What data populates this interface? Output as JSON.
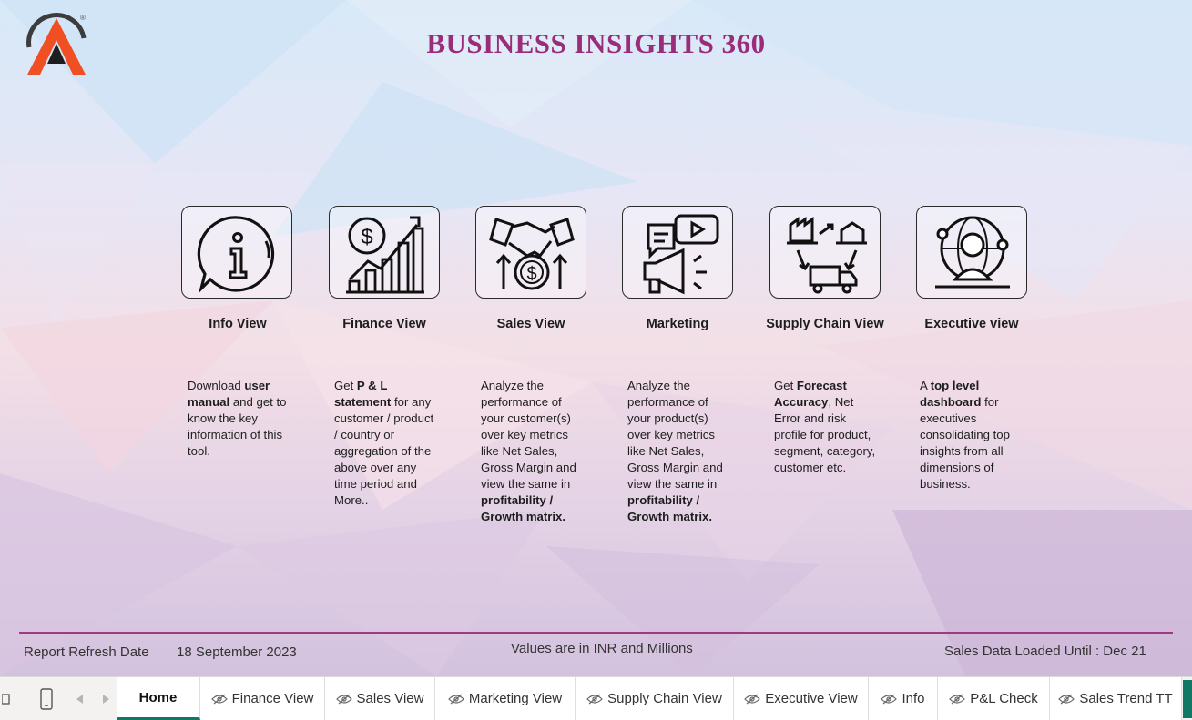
{
  "header": {
    "title": "BUSINESS INSIGHTS 360",
    "logo_mark": "®"
  },
  "colors": {
    "title": "#9b2c79",
    "accent_line": "#a03a7e",
    "active_tab": "#117865",
    "logo_orange": "#f04e23"
  },
  "cards": [
    {
      "label": "Info View",
      "icon": "info-chat-icon"
    },
    {
      "label": "Finance View",
      "icon": "finance-growth-icon"
    },
    {
      "label": "Sales View",
      "icon": "handshake-dollar-icon"
    },
    {
      "label": "Marketing",
      "icon": "megaphone-video-icon"
    },
    {
      "label": "Supply Chain View",
      "icon": "supply-chain-icon"
    },
    {
      "label": "Executive view",
      "icon": "executive-globe-icon"
    }
  ],
  "descriptions": [
    [
      {
        "t": "Download ",
        "b": false
      },
      {
        "t": "user manual",
        "b": true
      },
      {
        "t": " and get to know the key information of this tool.",
        "b": false
      }
    ],
    [
      {
        "t": "Get  ",
        "b": false
      },
      {
        "t": "P & L statement",
        "b": true
      },
      {
        "t": " for any customer / product / country or aggregation of the above over any time period and More..",
        "b": false
      }
    ],
    [
      {
        "t": "Analyze the performance of your customer(s) over key metrics like Net Sales, Gross Margin and view the same in ",
        "b": false
      },
      {
        "t": "profitability / Growth matrix.",
        "b": true
      }
    ],
    [
      {
        "t": "Analyze the performance of your product(s) over key metrics like Net Sales, Gross Margin and view the same in ",
        "b": false
      },
      {
        "t": "profitability / Growth matrix.",
        "b": true
      }
    ],
    [
      {
        "t": "Get ",
        "b": false
      },
      {
        "t": "Forecast Accuracy",
        "b": true
      },
      {
        "t": ", Net Error and risk profile for product, segment, category, customer etc.",
        "b": false
      }
    ],
    [
      {
        "t": "A ",
        "b": false
      },
      {
        "t": "top level dashboard",
        "b": true
      },
      {
        "t": " for executives consolidating top insights from all dimensions of business.",
        "b": false
      }
    ]
  ],
  "footer": {
    "refresh_label": "Report Refresh Date",
    "refresh_date": "18 September 2023",
    "units_note": "Values are in INR and Millions",
    "loaded_until": "Sales Data Loaded Until : Dec 21"
  },
  "tabs": [
    {
      "label": "Home",
      "active": true,
      "hidden": false
    },
    {
      "label": "Finance View",
      "active": false,
      "hidden": true
    },
    {
      "label": "Sales View",
      "active": false,
      "hidden": true
    },
    {
      "label": "Marketing View",
      "active": false,
      "hidden": true
    },
    {
      "label": "Supply Chain View",
      "active": false,
      "hidden": true
    },
    {
      "label": "Executive View",
      "active": false,
      "hidden": true
    },
    {
      "label": "Info",
      "active": false,
      "hidden": true
    },
    {
      "label": "P&L Check",
      "active": false,
      "hidden": true
    },
    {
      "label": "Sales Trend TT",
      "active": false,
      "hidden": true
    }
  ],
  "tabbar_controls": [
    "desktop-view-icon",
    "mobile-view-icon",
    "prev-page-icon",
    "next-page-icon"
  ]
}
